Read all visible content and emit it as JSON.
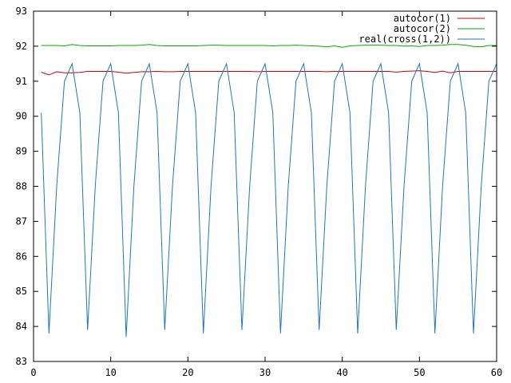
{
  "chart_data": {
    "type": "line",
    "title": "",
    "xlabel": "",
    "ylabel": "",
    "xlim": [
      0,
      60
    ],
    "ylim": [
      83,
      93
    ],
    "xticks": [
      0,
      10,
      20,
      30,
      40,
      50,
      60
    ],
    "yticks": [
      83,
      84,
      85,
      86,
      87,
      88,
      89,
      90,
      91,
      92,
      93
    ],
    "grid": false,
    "legend_position": "top-right",
    "series": [
      {
        "name": "autocor(1)",
        "color": "#cc0000",
        "x": [
          1,
          2,
          3,
          4,
          5,
          6,
          7,
          8,
          9,
          10,
          11,
          12,
          13,
          14,
          15,
          16,
          17,
          18,
          19,
          20,
          21,
          22,
          23,
          24,
          25,
          26,
          27,
          28,
          29,
          30,
          31,
          32,
          33,
          34,
          35,
          36,
          37,
          38,
          39,
          40,
          41,
          42,
          43,
          44,
          45,
          46,
          47,
          48,
          49,
          50,
          51,
          52,
          53,
          54,
          55,
          56,
          57,
          58,
          59,
          60
        ],
        "y": [
          91.26,
          91.18,
          91.27,
          91.24,
          91.24,
          91.25,
          91.28,
          91.28,
          91.28,
          91.28,
          91.26,
          91.23,
          91.25,
          91.27,
          91.27,
          91.28,
          91.27,
          91.27,
          91.28,
          91.28,
          91.28,
          91.28,
          91.28,
          91.28,
          91.28,
          91.28,
          91.28,
          91.28,
          91.27,
          91.28,
          91.28,
          91.28,
          91.28,
          91.28,
          91.28,
          91.28,
          91.28,
          91.27,
          91.28,
          91.28,
          91.28,
          91.28,
          91.28,
          91.28,
          91.28,
          91.28,
          91.26,
          91.28,
          91.29,
          91.3,
          91.28,
          91.25,
          91.29,
          91.24,
          91.28,
          91.28,
          91.28,
          91.28,
          91.28,
          91.28
        ]
      },
      {
        "name": "autocor(2)",
        "color": "#00aa00",
        "x": [
          1,
          2,
          3,
          4,
          5,
          6,
          7,
          8,
          9,
          10,
          11,
          12,
          13,
          14,
          15,
          16,
          17,
          18,
          19,
          20,
          21,
          22,
          23,
          24,
          25,
          26,
          27,
          28,
          29,
          30,
          31,
          32,
          33,
          34,
          35,
          36,
          37,
          38,
          39,
          40,
          41,
          42,
          43,
          44,
          45,
          46,
          47,
          48,
          49,
          50,
          51,
          52,
          53,
          54,
          55,
          56,
          57,
          58,
          59,
          60
        ],
        "y": [
          92.02,
          92.02,
          92.02,
          92.01,
          92.05,
          92.02,
          92.01,
          92.01,
          92.01,
          92.01,
          92.02,
          92.02,
          92.02,
          92.03,
          92.05,
          92.02,
          92.01,
          92.01,
          92.01,
          92.01,
          92.01,
          92.02,
          92.03,
          92.03,
          92.02,
          92.02,
          92.02,
          92.02,
          92.02,
          92.02,
          92.01,
          92.02,
          92.02,
          92.03,
          92.02,
          92.01,
          92.0,
          91.98,
          92.01,
          91.97,
          92.01,
          92.02,
          92.03,
          92.03,
          92.03,
          92.02,
          92.02,
          92.0,
          92.01,
          91.99,
          92.02,
          92.02,
          92.03,
          92.05,
          92.05,
          92.03,
          91.99,
          91.98,
          92.02,
          92.02
        ]
      },
      {
        "name": "real(cross(1,2))",
        "color": "#1f77b4",
        "x": [
          1,
          2,
          3,
          4,
          5,
          6,
          7,
          8,
          9,
          10,
          11,
          12,
          13,
          14,
          15,
          16,
          17,
          18,
          19,
          20,
          21,
          22,
          23,
          24,
          25,
          26,
          27,
          28,
          29,
          30,
          31,
          32,
          33,
          34,
          35,
          36,
          37,
          38,
          39,
          40,
          41,
          42,
          43,
          44,
          45,
          46,
          47,
          48,
          49,
          50,
          51,
          52,
          53,
          54,
          55,
          56,
          57,
          58,
          59,
          60
        ],
        "y": [
          90.1,
          83.8,
          88.0,
          91.0,
          91.5,
          90.1,
          83.9,
          88.0,
          91.0,
          91.5,
          90.1,
          83.7,
          88.0,
          91.0,
          91.5,
          90.1,
          83.9,
          88.0,
          91.0,
          91.5,
          90.1,
          83.8,
          88.0,
          91.0,
          91.5,
          90.1,
          83.9,
          88.0,
          91.0,
          91.5,
          90.1,
          83.8,
          88.0,
          91.0,
          91.5,
          90.1,
          83.9,
          88.0,
          91.0,
          91.5,
          90.1,
          83.8,
          88.0,
          91.0,
          91.5,
          90.1,
          83.9,
          88.0,
          91.0,
          91.5,
          90.1,
          83.8,
          88.0,
          91.0,
          91.5,
          90.1,
          83.8,
          88.0,
          91.0,
          91.5
        ]
      }
    ]
  }
}
